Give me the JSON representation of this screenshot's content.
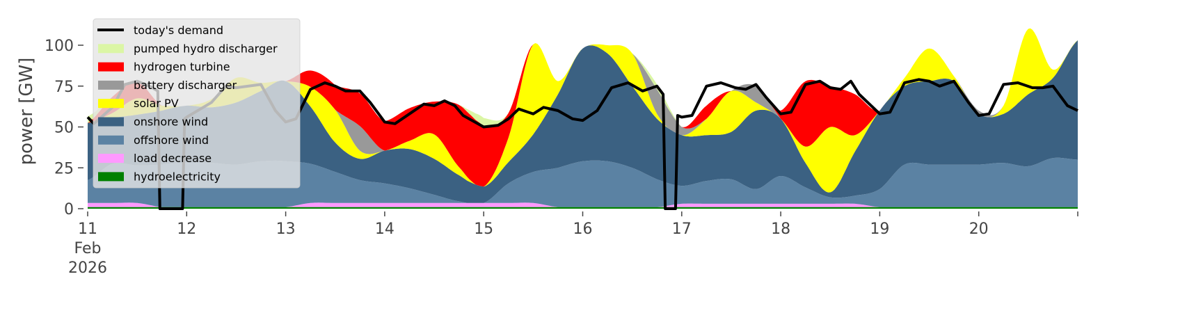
{
  "chart_data": {
    "type": "area",
    "stacked": true,
    "ylabel": "power [GW]",
    "xlabel": "",
    "ylim": [
      0,
      120
    ],
    "xlim": [
      "2026-02-11 00:00",
      "2026-02-21 00:00"
    ],
    "yticks": [
      0,
      25,
      50,
      75,
      100
    ],
    "xticks": [
      {
        "value": "2026-02-11",
        "label": "11",
        "sub1": "Feb",
        "sub2": "2026"
      },
      {
        "value": "2026-02-12",
        "label": "12"
      },
      {
        "value": "2026-02-13",
        "label": "13"
      },
      {
        "value": "2026-02-14",
        "label": "14"
      },
      {
        "value": "2026-02-15",
        "label": "15"
      },
      {
        "value": "2026-02-16",
        "label": "16"
      },
      {
        "value": "2026-02-17",
        "label": "17"
      },
      {
        "value": "2026-02-18",
        "label": "18"
      },
      {
        "value": "2026-02-19",
        "label": "19"
      },
      {
        "value": "2026-02-20",
        "label": "20"
      },
      {
        "value": "2026-02-21",
        "label": ""
      }
    ],
    "grid": false,
    "legend_placement": "upper-left",
    "x": [
      "2026-02-11 00:00",
      "2026-02-11 06:00",
      "2026-02-11 12:00",
      "2026-02-11 18:00",
      "2026-02-12 00:00",
      "2026-02-12 06:00",
      "2026-02-12 12:00",
      "2026-02-12 18:00",
      "2026-02-13 00:00",
      "2026-02-13 06:00",
      "2026-02-13 12:00",
      "2026-02-13 18:00",
      "2026-02-14 00:00",
      "2026-02-14 06:00",
      "2026-02-14 12:00",
      "2026-02-14 18:00",
      "2026-02-15 00:00",
      "2026-02-15 06:00",
      "2026-02-15 12:00",
      "2026-02-15 18:00",
      "2026-02-16 00:00",
      "2026-02-16 06:00",
      "2026-02-16 12:00",
      "2026-02-16 18:00",
      "2026-02-17 00:00",
      "2026-02-17 06:00",
      "2026-02-17 12:00",
      "2026-02-17 18:00",
      "2026-02-18 00:00",
      "2026-02-18 06:00",
      "2026-02-18 12:00",
      "2026-02-18 18:00",
      "2026-02-19 00:00",
      "2026-02-19 06:00",
      "2026-02-19 12:00",
      "2026-02-19 18:00",
      "2026-02-20 00:00",
      "2026-02-20 06:00",
      "2026-02-20 12:00",
      "2026-02-20 18:00",
      "2026-02-21 00:00"
    ],
    "series": [
      {
        "name": "hydroelectricity",
        "color": "#008000",
        "values": [
          1,
          1,
          1,
          1,
          1,
          1,
          1,
          1,
          1,
          1,
          1,
          1,
          1,
          1,
          1,
          1,
          1,
          1,
          1,
          1,
          1,
          1,
          1,
          1,
          1,
          1,
          1,
          1,
          1,
          1,
          1,
          1,
          1,
          1,
          1,
          1,
          1,
          1,
          1,
          1,
          1
        ]
      },
      {
        "name": "load decrease",
        "color": "#ff99ff",
        "values": [
          2.5,
          2.5,
          2.5,
          0,
          0,
          0,
          0,
          0,
          0,
          2.5,
          2.5,
          2.5,
          2.5,
          2.5,
          2.5,
          2.5,
          2.5,
          2.5,
          2.5,
          0,
          0,
          0,
          0,
          0,
          2,
          2,
          2,
          2,
          2,
          2,
          2,
          2,
          0,
          0,
          0,
          0,
          0,
          0,
          0,
          0,
          0
        ]
      },
      {
        "name": "offshore wind",
        "color": "#5b82a3",
        "values": [
          14,
          24,
          23,
          26,
          27,
          27,
          26,
          28,
          28,
          24,
          19,
          14,
          12,
          9,
          5,
          1,
          0,
          12,
          19,
          24,
          28,
          28,
          24,
          17,
          11,
          14,
          15,
          9,
          17,
          10,
          4,
          5,
          11,
          26,
          26,
          26,
          26,
          27,
          25,
          30,
          29
        ]
      },
      {
        "name": "onshore wind",
        "color": "#3b6182",
        "values": [
          35,
          28,
          31,
          33,
          35,
          34,
          38,
          43,
          49,
          35,
          18,
          13,
          20,
          24,
          22,
          16,
          10,
          13,
          23,
          45,
          69,
          66,
          50,
          37,
          31,
          28,
          29,
          48,
          35,
          15,
          3,
          27,
          48,
          48,
          51,
          51,
          31,
          30,
          44,
          49,
          73
        ]
      },
      {
        "name": "solar PV",
        "color": "#ffff00",
        "values": [
          0,
          3,
          10,
          3,
          0,
          5,
          15,
          5,
          0,
          12,
          20,
          5,
          0,
          5,
          15,
          5,
          0,
          15,
          55,
          8,
          0,
          5,
          20,
          3,
          0,
          10,
          25,
          5,
          0,
          10,
          40,
          10,
          0,
          5,
          20,
          3,
          0,
          5,
          40,
          5,
          0
        ]
      },
      {
        "name": "battery discharger",
        "color": "#999999",
        "values": [
          0,
          0,
          0,
          0,
          0,
          0,
          0,
          0,
          0,
          0,
          0,
          15,
          0,
          0,
          0,
          0,
          0,
          0,
          0,
          0,
          0,
          0,
          0,
          15,
          5,
          0,
          0,
          10,
          0,
          0,
          0,
          0,
          0,
          0,
          0,
          0,
          2,
          0,
          0,
          0,
          0
        ]
      },
      {
        "name": "hydrogen turbine",
        "color": "#ff0000",
        "values": [
          0,
          10,
          10,
          0,
          0,
          0,
          0,
          0,
          0,
          10,
          15,
          20,
          18,
          20,
          20,
          38,
          37,
          15,
          0,
          0,
          0,
          0,
          0,
          0,
          0,
          8,
          0,
          0,
          5,
          40,
          25,
          25,
          0,
          0,
          0,
          0,
          0,
          0,
          0,
          0,
          0
        ]
      },
      {
        "name": "pumped hydro discharger",
        "color": "#dbf6a5",
        "values": [
          4,
          0,
          0,
          0,
          0,
          0,
          0,
          0,
          0,
          0,
          0,
          0,
          0,
          0,
          0,
          0,
          5,
          0,
          0,
          0,
          0,
          0,
          0,
          3,
          0,
          0,
          0,
          0,
          0,
          0,
          0,
          0,
          0,
          0,
          0,
          0,
          0,
          0,
          0,
          0,
          0
        ]
      }
    ],
    "demand": {
      "name": "today's demand",
      "color": "#000000",
      "x": [
        "2026-02-11 00:00",
        "2026-02-11 01:30",
        "2026-02-11 06:00",
        "2026-02-11 09:00",
        "2026-02-11 12:00",
        "2026-02-11 15:00",
        "2026-02-11 17:00",
        "2026-02-11 17:30",
        "2026-02-11 23:00",
        "2026-02-11 23:30",
        "2026-02-12 00:00",
        "2026-02-12 06:00",
        "2026-02-12 09:30",
        "2026-02-12 12:00",
        "2026-02-12 18:00",
        "2026-02-12 21:30",
        "2026-02-13 00:00",
        "2026-02-13 02:30",
        "2026-02-13 06:00",
        "2026-02-13 09:30",
        "2026-02-13 12:00",
        "2026-02-13 14:30",
        "2026-02-13 18:00",
        "2026-02-13 20:30",
        "2026-02-14 00:00",
        "2026-02-14 02:30",
        "2026-02-14 06:00",
        "2026-02-14 09:30",
        "2026-02-14 12:00",
        "2026-02-14 14:30",
        "2026-02-14 17:00",
        "2026-02-14 19:00",
        "2026-02-15 00:00",
        "2026-02-15 03:30",
        "2026-02-15 06:00",
        "2026-02-15 08:30",
        "2026-02-15 12:00",
        "2026-02-15 14:30",
        "2026-02-15 18:00",
        "2026-02-15 21:30",
        "2026-02-16 00:00",
        "2026-02-16 03:30",
        "2026-02-16 07:00",
        "2026-02-16 11:00",
        "2026-02-16 14:30",
        "2026-02-16 18:00",
        "2026-02-16 19:30",
        "2026-02-16 20:00",
        "2026-02-16 22:30",
        "2026-02-16 23:00",
        "2026-02-17 00:00",
        "2026-02-17 02:30",
        "2026-02-17 06:00",
        "2026-02-17 09:30",
        "2026-02-17 13:00",
        "2026-02-17 15:30",
        "2026-02-17 18:00",
        "2026-02-17 20:30",
        "2026-02-18 00:00",
        "2026-02-18 02:30",
        "2026-02-18 06:00",
        "2026-02-18 09:30",
        "2026-02-18 12:00",
        "2026-02-18 14:30",
        "2026-02-18 17:00",
        "2026-02-18 19:00",
        "2026-02-19 00:00",
        "2026-02-19 02:30",
        "2026-02-19 06:00",
        "2026-02-19 09:30",
        "2026-02-19 12:00",
        "2026-02-19 14:30",
        "2026-02-19 18:00",
        "2026-02-19 21:30",
        "2026-02-20 00:00",
        "2026-02-20 02:30",
        "2026-02-20 06:00",
        "2026-02-20 09:30",
        "2026-02-20 13:00",
        "2026-02-20 15:30",
        "2026-02-20 18:00",
        "2026-02-20 21:30",
        "2026-02-21 00:00"
      ],
      "y": [
        56,
        52,
        62,
        76,
        78,
        75,
        72,
        0,
        0,
        55,
        56,
        65,
        75,
        74,
        76,
        60,
        53,
        55,
        73,
        77,
        75,
        72,
        72,
        65,
        53,
        52,
        58,
        64,
        63,
        66,
        63,
        57,
        50,
        51,
        55,
        61,
        58,
        62,
        60,
        55,
        54,
        60,
        74,
        77,
        72,
        75,
        70,
        0,
        0,
        57,
        56,
        57,
        75,
        77,
        74,
        73,
        76,
        68,
        58,
        59,
        76,
        78,
        74,
        73,
        78,
        70,
        58,
        59,
        77,
        79,
        78,
        75,
        78,
        65,
        57,
        58,
        76,
        77,
        74,
        74,
        75,
        63,
        60
      ]
    },
    "legend": [
      "today's demand",
      "pumped hydro discharger",
      "hydrogen turbine",
      "battery discharger",
      "solar PV",
      "onshore wind",
      "offshore wind",
      "load decrease",
      "hydroelectricity"
    ]
  }
}
